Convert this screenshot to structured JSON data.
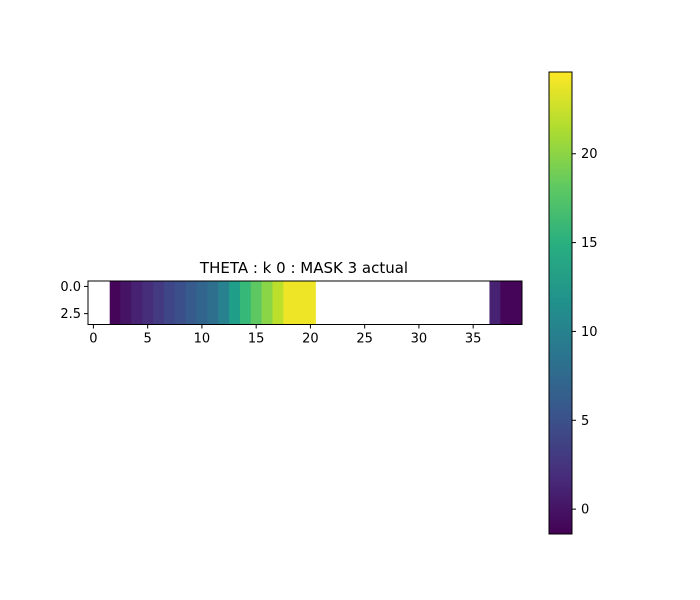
{
  "chart_data": {
    "type": "heatmap",
    "title": "THETA : k 0 : MASK 3 actual",
    "xlabel": "",
    "ylabel": "",
    "grid": false,
    "colormap": "viridis",
    "xlim": [
      -0.5,
      39.5
    ],
    "ylim": [
      3.5,
      -0.5
    ],
    "rows": 4,
    "cols": 40,
    "xticks": [
      0,
      5,
      10,
      15,
      20,
      25,
      30,
      35
    ],
    "xtick_labels": [
      "0",
      "5",
      "10",
      "15",
      "20",
      "25",
      "30",
      "35"
    ],
    "yticks": [
      0.0,
      2.5
    ],
    "ytick_labels": [
      "0.0",
      "2.5"
    ],
    "masked_color": "#ffffff",
    "column_values": [
      null,
      null,
      -1,
      0,
      1,
      2,
      3,
      4,
      5,
      6,
      7,
      8,
      10,
      13,
      16,
      18,
      20,
      22,
      24,
      24,
      24,
      null,
      null,
      null,
      null,
      null,
      null,
      null,
      null,
      null,
      null,
      null,
      null,
      null,
      null,
      null,
      null,
      1,
      -1,
      -1
    ],
    "colorbar": {
      "min": -1.4,
      "max": 24.6,
      "ticks": [
        0,
        5,
        10,
        15,
        20
      ],
      "tick_labels": [
        "0",
        "5",
        "10",
        "15",
        "20"
      ]
    }
  }
}
